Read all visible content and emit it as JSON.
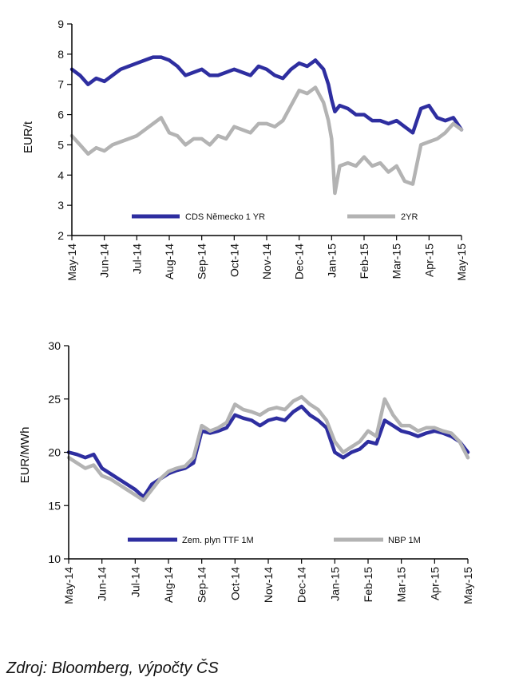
{
  "source_note": "Zdroj: Bloomberg, výpočty ČS",
  "colors": {
    "series_primary": "#2e2ea0",
    "series_secondary": "#b3b3b3",
    "axis": "#000000"
  },
  "chart_data": [
    {
      "type": "line",
      "ylabel": "EUR/t",
      "ylim": [
        2,
        9
      ],
      "yticks": [
        "2",
        "3",
        "4",
        "5",
        "6",
        "7",
        "8",
        "9"
      ],
      "xticks": [
        "May-14",
        "Jun-14",
        "Jul-14",
        "Aug-14",
        "Sep-14",
        "Oct-14",
        "Nov-14",
        "Dec-14",
        "Jan-15",
        "Feb-15",
        "Mar-15",
        "Apr-15",
        "May-15"
      ],
      "x_range": [
        0,
        12
      ],
      "legend": [
        "CDS Německo 1 YR",
        "2YR"
      ],
      "series": [
        {
          "name": "CDS Německo 1 YR",
          "x": [
            0,
            0.25,
            0.5,
            0.75,
            1,
            1.25,
            1.5,
            1.75,
            2,
            2.25,
            2.5,
            2.75,
            3,
            3.25,
            3.5,
            3.75,
            4,
            4.25,
            4.5,
            4.75,
            5,
            5.25,
            5.5,
            5.75,
            6,
            6.25,
            6.5,
            6.75,
            7,
            7.25,
            7.5,
            7.75,
            7.9,
            8,
            8.1,
            8.25,
            8.5,
            8.75,
            9,
            9.25,
            9.5,
            9.75,
            10,
            10.25,
            10.5,
            10.75,
            11,
            11.25,
            11.5,
            11.75,
            12
          ],
          "values": [
            7.5,
            7.3,
            7.0,
            7.2,
            7.1,
            7.3,
            7.5,
            7.6,
            7.7,
            7.8,
            7.9,
            7.9,
            7.8,
            7.6,
            7.3,
            7.4,
            7.5,
            7.3,
            7.3,
            7.4,
            7.5,
            7.4,
            7.3,
            7.6,
            7.5,
            7.3,
            7.2,
            7.5,
            7.7,
            7.6,
            7.8,
            7.5,
            7.0,
            6.5,
            6.1,
            6.3,
            6.2,
            6.0,
            6.0,
            5.8,
            5.8,
            5.7,
            5.8,
            5.6,
            5.4,
            6.2,
            6.3,
            5.9,
            5.8,
            5.9,
            5.5
          ]
        },
        {
          "name": "2YR",
          "x": [
            0,
            0.25,
            0.5,
            0.75,
            1,
            1.25,
            1.5,
            1.75,
            2,
            2.25,
            2.5,
            2.75,
            3,
            3.25,
            3.5,
            3.75,
            4,
            4.25,
            4.5,
            4.75,
            5,
            5.25,
            5.5,
            5.75,
            6,
            6.25,
            6.5,
            6.75,
            7,
            7.25,
            7.5,
            7.75,
            7.9,
            8,
            8.1,
            8.25,
            8.5,
            8.75,
            9,
            9.25,
            9.5,
            9.75,
            10,
            10.25,
            10.5,
            10.75,
            11,
            11.25,
            11.5,
            11.75,
            12
          ],
          "values": [
            5.3,
            5.0,
            4.7,
            4.9,
            4.8,
            5.0,
            5.1,
            5.2,
            5.3,
            5.5,
            5.7,
            5.9,
            5.4,
            5.3,
            5.0,
            5.2,
            5.2,
            5.0,
            5.3,
            5.2,
            5.6,
            5.5,
            5.4,
            5.7,
            5.7,
            5.6,
            5.8,
            6.3,
            6.8,
            6.7,
            6.9,
            6.4,
            5.8,
            5.2,
            3.4,
            4.3,
            4.4,
            4.3,
            4.6,
            4.3,
            4.4,
            4.1,
            4.3,
            3.8,
            3.7,
            5.0,
            5.1,
            5.2,
            5.4,
            5.7,
            5.5
          ]
        }
      ]
    },
    {
      "type": "line",
      "ylabel": "EUR/MWh",
      "ylim": [
        10,
        30
      ],
      "yticks": [
        "10",
        "15",
        "20",
        "25",
        "30"
      ],
      "xticks": [
        "May-14",
        "Jun-14",
        "Jul-14",
        "Aug-14",
        "Sep-14",
        "Oct-14",
        "Nov-14",
        "Dec-14",
        "Jan-15",
        "Feb-15",
        "Mar-15",
        "Apr-15",
        "May-15"
      ],
      "x_range": [
        0,
        12
      ],
      "legend": [
        "Zem. plyn TTF 1M",
        "NBP 1M"
      ],
      "series": [
        {
          "name": "Zem. plyn TTF 1M",
          "x": [
            0,
            0.25,
            0.5,
            0.75,
            1,
            1.25,
            1.5,
            1.75,
            2,
            2.25,
            2.5,
            2.75,
            3,
            3.25,
            3.5,
            3.75,
            4,
            4.25,
            4.5,
            4.75,
            5,
            5.25,
            5.5,
            5.75,
            6,
            6.25,
            6.5,
            6.75,
            7,
            7.25,
            7.5,
            7.75,
            8,
            8.25,
            8.5,
            8.75,
            9,
            9.25,
            9.5,
            9.75,
            10,
            10.25,
            10.5,
            10.75,
            11,
            11.25,
            11.5,
            11.75,
            12
          ],
          "values": [
            20.0,
            19.8,
            19.5,
            19.8,
            18.5,
            18.0,
            17.5,
            17.0,
            16.5,
            15.8,
            17.0,
            17.5,
            18.0,
            18.3,
            18.5,
            19.0,
            22.0,
            21.8,
            22.0,
            22.3,
            23.5,
            23.2,
            23.0,
            22.5,
            23.0,
            23.2,
            23.0,
            23.8,
            24.3,
            23.5,
            23.0,
            22.3,
            20.0,
            19.5,
            20.0,
            20.3,
            21.0,
            20.8,
            23.0,
            22.5,
            22.0,
            21.8,
            21.5,
            21.8,
            22.0,
            21.8,
            21.5,
            21.0,
            20.0
          ]
        },
        {
          "name": "NBP 1M",
          "x": [
            0,
            0.25,
            0.5,
            0.75,
            1,
            1.25,
            1.5,
            1.75,
            2,
            2.25,
            2.5,
            2.75,
            3,
            3.25,
            3.5,
            3.75,
            4,
            4.25,
            4.5,
            4.75,
            5,
            5.25,
            5.5,
            5.75,
            6,
            6.25,
            6.5,
            6.75,
            7,
            7.25,
            7.5,
            7.75,
            8,
            8.25,
            8.5,
            8.75,
            9,
            9.25,
            9.5,
            9.75,
            10,
            10.25,
            10.5,
            10.75,
            11,
            11.25,
            11.5,
            11.75,
            12
          ],
          "values": [
            19.5,
            19.0,
            18.5,
            18.8,
            17.8,
            17.5,
            17.0,
            16.5,
            16.0,
            15.5,
            16.5,
            17.5,
            18.2,
            18.5,
            18.7,
            19.5,
            22.5,
            22.0,
            22.3,
            22.8,
            24.5,
            24.0,
            23.8,
            23.5,
            24.0,
            24.2,
            24.0,
            24.8,
            25.2,
            24.5,
            24.0,
            23.0,
            21.0,
            20.0,
            20.5,
            21.0,
            22.0,
            21.5,
            25.0,
            23.5,
            22.5,
            22.5,
            22.0,
            22.3,
            22.3,
            22.0,
            21.8,
            21.0,
            19.5
          ]
        }
      ]
    }
  ]
}
